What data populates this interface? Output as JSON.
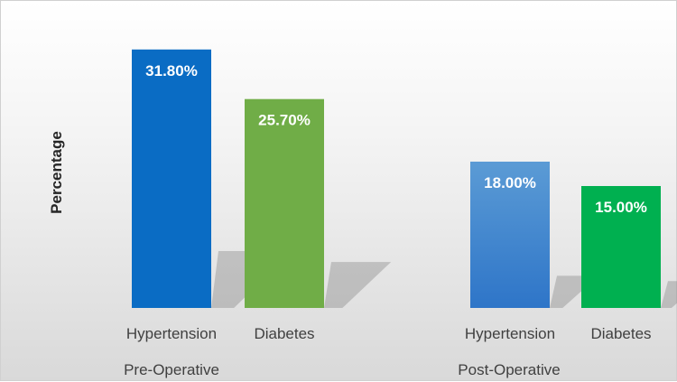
{
  "chart_data": {
    "type": "bar",
    "ylabel": "Percentage",
    "groups": [
      {
        "name": "Pre-Operative",
        "bars": [
          {
            "category": "Hypertension",
            "value": 31.8,
            "label": "31.80%"
          },
          {
            "category": "Diabetes",
            "value": 25.7,
            "label": "25.70%"
          }
        ]
      },
      {
        "name": "Post-Operative",
        "bars": [
          {
            "category": "Hypertension",
            "value": 18.0,
            "label": "18.00%"
          },
          {
            "category": "Diabetes",
            "value": 15.0,
            "label": "15.00%"
          }
        ]
      }
    ],
    "ylim": [
      0,
      35
    ],
    "grid": false,
    "colors": {
      "pre_hypertension": "#0a6cc4",
      "pre_diabetes": "#70ad47",
      "post_hypertension": "#4a8fd6",
      "post_diabetes": "#00b050"
    }
  }
}
